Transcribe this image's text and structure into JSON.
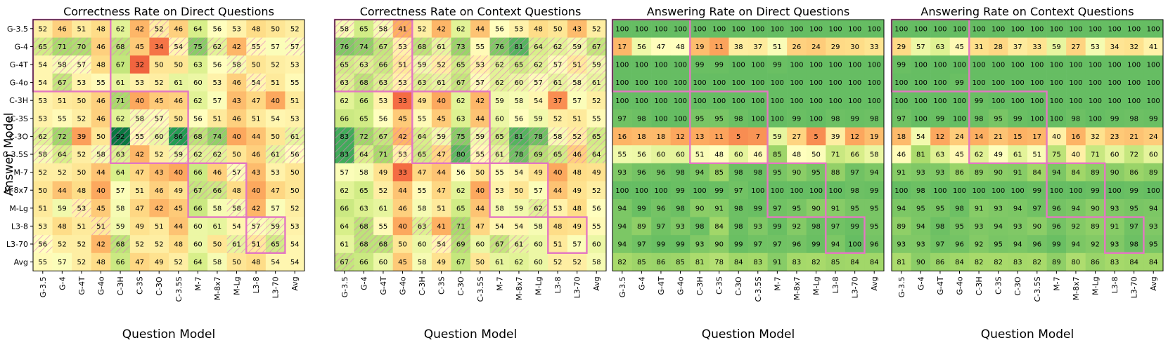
{
  "figure": {
    "ylabel": "Answer Model",
    "xlabel": "Question Model",
    "highlight_color": "#e377c2",
    "colormap": "RdYlGn"
  },
  "row_labels": [
    "G-3.5",
    "G-4",
    "G-4T",
    "G-4o",
    "C-3H",
    "C-3S",
    "C-3O",
    "C-3.5S",
    "M-7",
    "M-8x7",
    "M-Lg",
    "L3-8",
    "L3-70",
    "Avg"
  ],
  "col_labels": [
    "G-3.5",
    "G-4",
    "G-4T",
    "G-4o",
    "C-3H",
    "C-3S",
    "C-3O",
    "C-3.5S",
    "M-7",
    "M-8x7",
    "M-Lg",
    "L3-8",
    "L3-70",
    "Avg"
  ],
  "chart_data": [
    {
      "type": "heatmap",
      "title": "Correctness Rate on Direct Questions",
      "vmin": 0,
      "vmax": 100,
      "values": [
        [
          52,
          46,
          51,
          48,
          62,
          42,
          52,
          46,
          64,
          56,
          53,
          48,
          50,
          52
        ],
        [
          65,
          71,
          70,
          46,
          68,
          45,
          34,
          54,
          75,
          62,
          42,
          55,
          57,
          57
        ],
        [
          54,
          58,
          57,
          48,
          67,
          32,
          50,
          50,
          63,
          56,
          58,
          50,
          52,
          53
        ],
        [
          54,
          67,
          53,
          55,
          61,
          53,
          52,
          61,
          60,
          53,
          46,
          54,
          51,
          55
        ],
        [
          53,
          51,
          50,
          46,
          71,
          40,
          45,
          46,
          62,
          57,
          43,
          47,
          40,
          51
        ],
        [
          53,
          55,
          52,
          46,
          62,
          58,
          57,
          50,
          56,
          51,
          46,
          51,
          54,
          53
        ],
        [
          62,
          72,
          39,
          50,
          92,
          55,
          60,
          86,
          68,
          74,
          40,
          44,
          50,
          61
        ],
        [
          58,
          64,
          52,
          58,
          63,
          42,
          52,
          59,
          62,
          62,
          50,
          46,
          61,
          56
        ],
        [
          52,
          52,
          50,
          44,
          64,
          47,
          43,
          40,
          66,
          46,
          57,
          43,
          53,
          50
        ],
        [
          50,
          44,
          48,
          40,
          57,
          51,
          46,
          49,
          67,
          66,
          48,
          40,
          47,
          50
        ],
        [
          51,
          59,
          53,
          45,
          58,
          47,
          42,
          45,
          66,
          58,
          58,
          42,
          57,
          52
        ],
        [
          53,
          48,
          51,
          51,
          59,
          49,
          51,
          44,
          60,
          61,
          54,
          57,
          59,
          53
        ],
        [
          56,
          52,
          52,
          42,
          68,
          52,
          52,
          48,
          60,
          50,
          61,
          51,
          65,
          54
        ],
        [
          55,
          57,
          52,
          48,
          66,
          47,
          49,
          52,
          64,
          58,
          50,
          48,
          54,
          54
        ]
      ],
      "hatched": [
        [
          0,
          0,
          0,
          0,
          0,
          0,
          1,
          0,
          0,
          0,
          0,
          0,
          0,
          0
        ],
        [
          1,
          1,
          1,
          0,
          1,
          0,
          0,
          1,
          1,
          1,
          0,
          1,
          0,
          1
        ],
        [
          0,
          1,
          1,
          0,
          0,
          0,
          0,
          0,
          0,
          0,
          1,
          0,
          0,
          0
        ],
        [
          0,
          1,
          0,
          0,
          0,
          0,
          0,
          0,
          0,
          0,
          0,
          1,
          0,
          0
        ],
        [
          0,
          0,
          0,
          0,
          1,
          0,
          0,
          0,
          0,
          0,
          0,
          0,
          0,
          0
        ],
        [
          0,
          0,
          0,
          0,
          0,
          1,
          1,
          0,
          0,
          0,
          0,
          0,
          0,
          0
        ],
        [
          1,
          1,
          0,
          0,
          1,
          1,
          1,
          1,
          1,
          1,
          0,
          0,
          0,
          1
        ],
        [
          1,
          1,
          0,
          1,
          1,
          0,
          0,
          1,
          1,
          1,
          0,
          0,
          1,
          1
        ],
        [
          0,
          0,
          0,
          0,
          0,
          0,
          0,
          0,
          0,
          0,
          1,
          0,
          0,
          0
        ],
        [
          0,
          0,
          0,
          0,
          0,
          0,
          0,
          0,
          1,
          1,
          0,
          0,
          0,
          0
        ],
        [
          0,
          0,
          1,
          0,
          0,
          0,
          0,
          0,
          0,
          0,
          1,
          0,
          0,
          0
        ],
        [
          0,
          0,
          0,
          1,
          0,
          0,
          0,
          0,
          0,
          0,
          0,
          1,
          1,
          0
        ],
        [
          1,
          0,
          0,
          0,
          1,
          0,
          0,
          0,
          0,
          0,
          1,
          1,
          1,
          0
        ],
        [
          0,
          0,
          0,
          0,
          0,
          0,
          0,
          0,
          0,
          0,
          0,
          0,
          0,
          0
        ]
      ]
    },
    {
      "type": "heatmap",
      "title": "Correctness Rate on Context Questions",
      "vmin": 0,
      "vmax": 100,
      "values": [
        [
          58,
          65,
          58,
          41,
          52,
          42,
          62,
          44,
          56,
          53,
          48,
          50,
          43,
          52
        ],
        [
          76,
          74,
          67,
          53,
          68,
          61,
          73,
          55,
          76,
          81,
          64,
          62,
          59,
          67
        ],
        [
          65,
          63,
          66,
          51,
          59,
          52,
          65,
          53,
          62,
          65,
          62,
          57,
          51,
          59
        ],
        [
          63,
          68,
          63,
          53,
          63,
          61,
          67,
          57,
          62,
          60,
          57,
          61,
          58,
          61
        ],
        [
          62,
          66,
          53,
          33,
          49,
          40,
          62,
          42,
          59,
          58,
          54,
          37,
          57,
          52
        ],
        [
          66,
          65,
          56,
          45,
          55,
          45,
          63,
          44,
          60,
          56,
          59,
          52,
          51,
          55
        ],
        [
          83,
          72,
          67,
          42,
          64,
          59,
          75,
          59,
          65,
          81,
          78,
          58,
          52,
          65
        ],
        [
          83,
          64,
          71,
          53,
          65,
          47,
          80,
          55,
          61,
          78,
          69,
          65,
          46,
          64
        ],
        [
          57,
          58,
          49,
          33,
          47,
          44,
          56,
          50,
          55,
          54,
          49,
          40,
          48,
          49
        ],
        [
          62,
          65,
          52,
          44,
          55,
          47,
          62,
          40,
          53,
          50,
          57,
          44,
          49,
          52
        ],
        [
          66,
          63,
          61,
          46,
          58,
          51,
          65,
          44,
          58,
          59,
          62,
          53,
          48,
          56
        ],
        [
          64,
          68,
          55,
          40,
          63,
          41,
          71,
          47,
          54,
          54,
          58,
          48,
          49,
          55
        ],
        [
          61,
          68,
          68,
          50,
          60,
          54,
          69,
          60,
          67,
          61,
          60,
          51,
          57,
          60
        ],
        [
          67,
          66,
          60,
          45,
          58,
          49,
          67,
          50,
          61,
          62,
          60,
          52,
          52,
          58
        ]
      ],
      "hatched": [
        [
          1,
          0,
          1,
          1,
          0,
          0,
          0,
          0,
          0,
          0,
          0,
          0,
          0,
          0
        ],
        [
          1,
          1,
          1,
          1,
          1,
          1,
          1,
          0,
          1,
          1,
          1,
          1,
          1,
          1
        ],
        [
          1,
          1,
          1,
          1,
          1,
          1,
          1,
          1,
          1,
          1,
          1,
          1,
          1,
          1
        ],
        [
          1,
          1,
          1,
          1,
          1,
          1,
          1,
          1,
          1,
          1,
          1,
          1,
          1,
          1
        ],
        [
          0,
          0,
          0,
          0,
          0,
          0,
          0,
          0,
          0,
          0,
          0,
          0,
          0,
          0
        ],
        [
          0,
          0,
          0,
          0,
          0,
          0,
          0,
          0,
          0,
          0,
          0,
          0,
          0,
          0
        ],
        [
          1,
          1,
          1,
          1,
          1,
          1,
          1,
          1,
          1,
          1,
          1,
          1,
          1,
          1
        ],
        [
          1,
          1,
          1,
          1,
          1,
          1,
          1,
          1,
          1,
          1,
          1,
          1,
          1,
          1
        ],
        [
          0,
          0,
          0,
          0,
          0,
          0,
          0,
          0,
          0,
          0,
          0,
          0,
          0,
          0
        ],
        [
          0,
          0,
          0,
          0,
          0,
          0,
          0,
          0,
          0,
          0,
          0,
          0,
          0,
          0
        ],
        [
          0,
          0,
          0,
          0,
          0,
          0,
          0,
          0,
          0,
          0,
          1,
          0,
          0,
          0
        ],
        [
          0,
          1,
          0,
          0,
          1,
          0,
          1,
          0,
          0,
          0,
          0,
          0,
          0,
          0
        ],
        [
          0,
          1,
          1,
          0,
          0,
          1,
          1,
          0,
          1,
          1,
          0,
          0,
          0,
          0
        ],
        [
          1,
          0,
          0,
          0,
          0,
          0,
          0,
          0,
          0,
          0,
          0,
          0,
          0,
          0
        ]
      ]
    },
    {
      "type": "heatmap",
      "title": "Answering Rate on Direct Questions",
      "vmin": 0,
      "vmax": 100,
      "values": [
        [
          100,
          100,
          100,
          100,
          100,
          100,
          100,
          100,
          100,
          100,
          100,
          100,
          100,
          100
        ],
        [
          17,
          56,
          47,
          48,
          19,
          11,
          38,
          37,
          51,
          26,
          24,
          29,
          30,
          33
        ],
        [
          100,
          100,
          100,
          100,
          99,
          99,
          100,
          100,
          99,
          100,
          100,
          100,
          100,
          100
        ],
        [
          100,
          100,
          100,
          100,
          100,
          100,
          100,
          100,
          100,
          100,
          100,
          100,
          100,
          100
        ],
        [
          100,
          100,
          100,
          100,
          100,
          100,
          100,
          100,
          100,
          100,
          100,
          100,
          100,
          100
        ],
        [
          97,
          98,
          100,
          100,
          95,
          95,
          98,
          100,
          100,
          99,
          100,
          98,
          99,
          98
        ],
        [
          16,
          18,
          18,
          12,
          13,
          11,
          5,
          7,
          59,
          27,
          5,
          39,
          12,
          19
        ],
        [
          55,
          56,
          60,
          60,
          51,
          48,
          60,
          46,
          85,
          48,
          50,
          71,
          66,
          58
        ],
        [
          93,
          96,
          96,
          98,
          94,
          85,
          98,
          98,
          95,
          90,
          95,
          88,
          97,
          94
        ],
        [
          100,
          100,
          100,
          99,
          100,
          99,
          97,
          100,
          100,
          100,
          100,
          100,
          98,
          99
        ],
        [
          94,
          99,
          96,
          98,
          90,
          91,
          98,
          99,
          97,
          95,
          90,
          91,
          95,
          95
        ],
        [
          94,
          89,
          97,
          93,
          98,
          84,
          98,
          93,
          99,
          92,
          98,
          97,
          99,
          95
        ],
        [
          94,
          97,
          99,
          99,
          93,
          90,
          99,
          97,
          97,
          96,
          99,
          94,
          100,
          96
        ],
        [
          82,
          85,
          86,
          85,
          81,
          78,
          84,
          83,
          91,
          83,
          82,
          85,
          84,
          84
        ]
      ]
    },
    {
      "type": "heatmap",
      "title": "Answering Rate on Context Questions",
      "vmin": 0,
      "vmax": 100,
      "values": [
        [
          100,
          100,
          100,
          100,
          100,
          100,
          100,
          100,
          100,
          100,
          100,
          100,
          100,
          100
        ],
        [
          29,
          57,
          63,
          45,
          31,
          28,
          37,
          33,
          59,
          27,
          53,
          34,
          32,
          41
        ],
        [
          99,
          100,
          100,
          100,
          100,
          100,
          100,
          100,
          100,
          100,
          100,
          100,
          100,
          100
        ],
        [
          100,
          100,
          100,
          99,
          100,
          100,
          100,
          100,
          100,
          100,
          100,
          100,
          100,
          100
        ],
        [
          100,
          100,
          100,
          100,
          99,
          100,
          100,
          100,
          100,
          100,
          100,
          100,
          100,
          100
        ],
        [
          97,
          100,
          99,
          100,
          98,
          95,
          99,
          100,
          100,
          98,
          100,
          99,
          98,
          99
        ],
        [
          18,
          54,
          12,
          24,
          14,
          21,
          15,
          17,
          40,
          16,
          32,
          23,
          21,
          24
        ],
        [
          46,
          81,
          63,
          45,
          62,
          49,
          61,
          51,
          75,
          40,
          71,
          60,
          72,
          60
        ],
        [
          91,
          93,
          93,
          86,
          89,
          90,
          91,
          84,
          94,
          84,
          89,
          90,
          86,
          89
        ],
        [
          100,
          98,
          100,
          100,
          100,
          100,
          100,
          99,
          100,
          100,
          99,
          100,
          99,
          100
        ],
        [
          94,
          95,
          95,
          98,
          91,
          93,
          94,
          97,
          96,
          94,
          90,
          93,
          95,
          94
        ],
        [
          89,
          94,
          98,
          95,
          93,
          94,
          93,
          90,
          96,
          92,
          89,
          91,
          97,
          93
        ],
        [
          93,
          93,
          97,
          96,
          92,
          95,
          94,
          96,
          99,
          94,
          92,
          93,
          98,
          95
        ],
        [
          81,
          90,
          86,
          84,
          82,
          82,
          83,
          82,
          89,
          80,
          86,
          83,
          84,
          84
        ]
      ]
    }
  ]
}
